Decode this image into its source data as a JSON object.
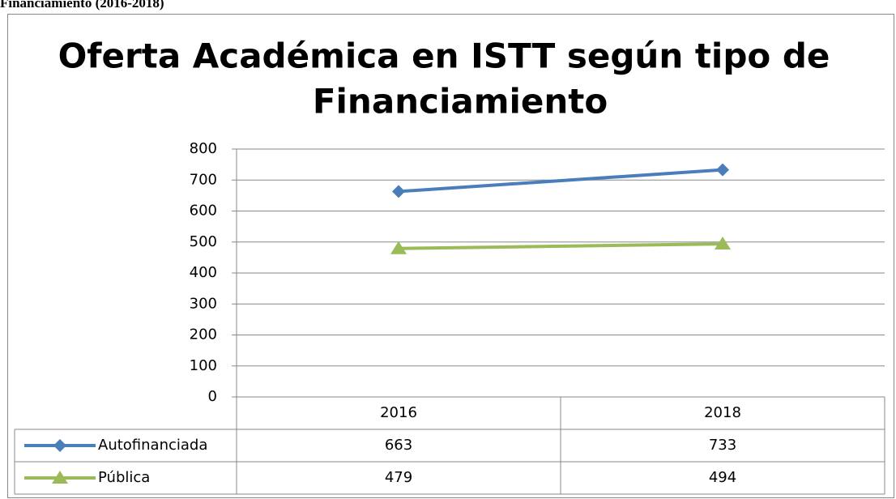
{
  "caption": "Financiamiento (2016-2018)",
  "chart_data": {
    "type": "line",
    "title_lines": [
      "Oferta Académica en ISTT según tipo de",
      "Financiamiento"
    ],
    "categories": [
      "2016",
      "2018"
    ],
    "series": [
      {
        "name": "Autofinanciada",
        "color": "#4a7ebb",
        "marker": "diamond",
        "values": [
          663,
          733
        ]
      },
      {
        "name": "Pública",
        "color": "#9bbb59",
        "marker": "triangle",
        "values": [
          479,
          494
        ]
      }
    ],
    "ylim": [
      0,
      800
    ],
    "yticks": [
      0,
      100,
      200,
      300,
      400,
      500,
      600,
      700,
      800
    ],
    "grid": true,
    "data_table": true
  }
}
